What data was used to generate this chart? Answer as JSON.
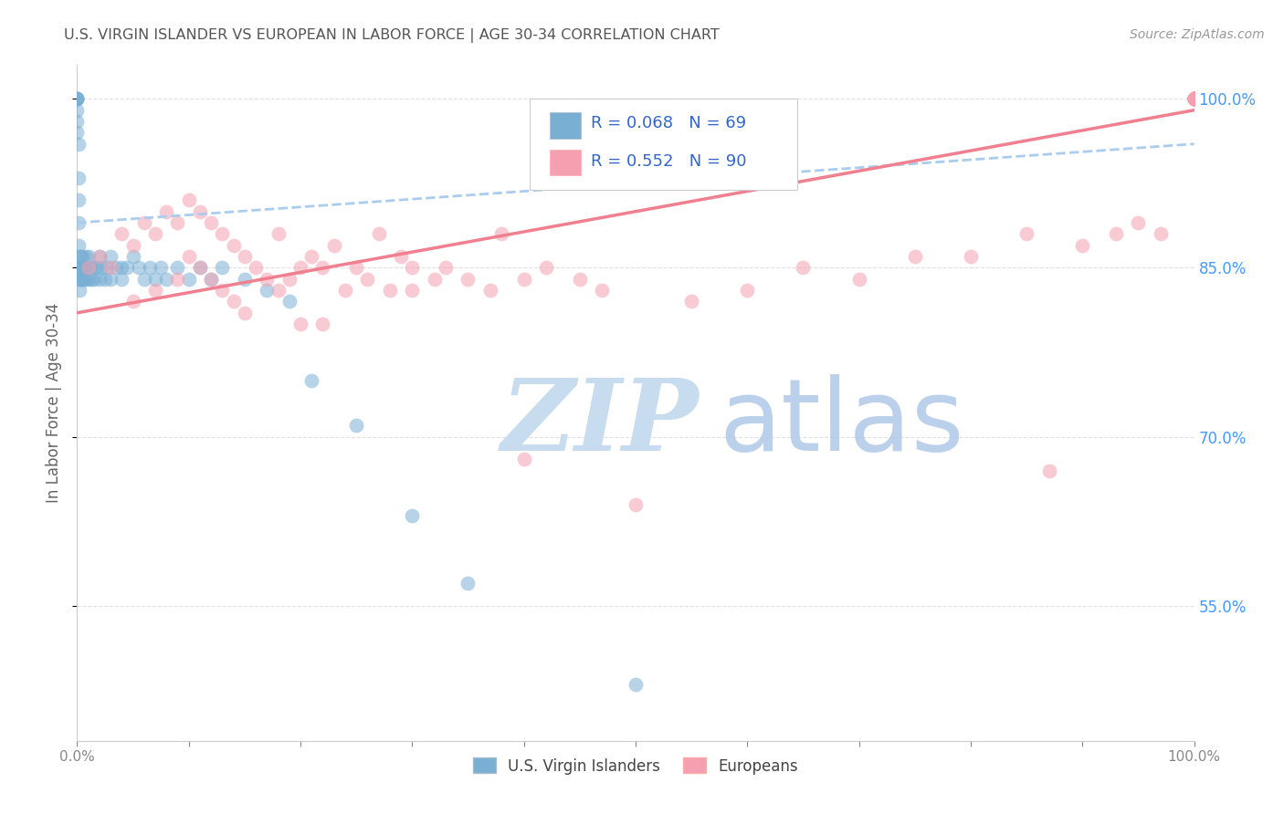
{
  "title": "U.S. VIRGIN ISLANDER VS EUROPEAN IN LABOR FORCE | AGE 30-34 CORRELATION CHART",
  "source": "Source: ZipAtlas.com",
  "ylabel": "In Labor Force | Age 30-34",
  "legend_label_1": "U.S. Virgin Islanders",
  "legend_label_2": "Europeans",
  "R1": 0.068,
  "N1": 69,
  "R2": 0.552,
  "N2": 90,
  "color_blue": "#7AAFD4",
  "color_pink": "#F4A0B0",
  "color_trend_blue": "#AACCEE",
  "color_trend_pink": "#F08090",
  "watermark_zip_color": "#C8DCEF",
  "watermark_atlas_color": "#B0C8E8",
  "title_color": "#555555",
  "tick_color_right": "#4499FF",
  "grid_color": "#E0E0E0",
  "xlim": [
    0.0,
    1.0
  ],
  "ylim": [
    0.43,
    1.03
  ],
  "blue_x": [
    0.0,
    0.0,
    0.0,
    0.0,
    0.0,
    0.0,
    0.0,
    0.0,
    0.001,
    0.001,
    0.001,
    0.001,
    0.001,
    0.002,
    0.002,
    0.002,
    0.002,
    0.003,
    0.003,
    0.003,
    0.004,
    0.004,
    0.005,
    0.005,
    0.005,
    0.006,
    0.006,
    0.007,
    0.008,
    0.008,
    0.009,
    0.01,
    0.01,
    0.012,
    0.013,
    0.015,
    0.015,
    0.018,
    0.02,
    0.02,
    0.022,
    0.025,
    0.027,
    0.03,
    0.03,
    0.035,
    0.04,
    0.04,
    0.045,
    0.05,
    0.055,
    0.06,
    0.065,
    0.07,
    0.075,
    0.08,
    0.09,
    0.1,
    0.11,
    0.12,
    0.13,
    0.15,
    0.17,
    0.19,
    0.21,
    0.25,
    0.3,
    0.35,
    0.5
  ],
  "blue_y": [
    1.0,
    1.0,
    1.0,
    1.0,
    1.0,
    0.99,
    0.98,
    0.97,
    0.96,
    0.93,
    0.91,
    0.89,
    0.87,
    0.86,
    0.85,
    0.84,
    0.83,
    0.86,
    0.85,
    0.84,
    0.85,
    0.84,
    0.86,
    0.85,
    0.84,
    0.85,
    0.84,
    0.85,
    0.86,
    0.84,
    0.85,
    0.86,
    0.84,
    0.85,
    0.84,
    0.85,
    0.84,
    0.85,
    0.86,
    0.84,
    0.85,
    0.84,
    0.85,
    0.86,
    0.84,
    0.85,
    0.85,
    0.84,
    0.85,
    0.86,
    0.85,
    0.84,
    0.85,
    0.84,
    0.85,
    0.84,
    0.85,
    0.84,
    0.85,
    0.84,
    0.85,
    0.84,
    0.83,
    0.82,
    0.75,
    0.71,
    0.63,
    0.57,
    0.48
  ],
  "pink_x": [
    0.01,
    0.02,
    0.03,
    0.04,
    0.05,
    0.05,
    0.06,
    0.07,
    0.07,
    0.08,
    0.09,
    0.09,
    0.1,
    0.1,
    0.11,
    0.11,
    0.12,
    0.12,
    0.13,
    0.13,
    0.14,
    0.14,
    0.15,
    0.15,
    0.16,
    0.17,
    0.18,
    0.18,
    0.19,
    0.2,
    0.2,
    0.21,
    0.22,
    0.22,
    0.23,
    0.24,
    0.25,
    0.26,
    0.27,
    0.28,
    0.29,
    0.3,
    0.3,
    0.32,
    0.33,
    0.35,
    0.37,
    0.38,
    0.4,
    0.4,
    0.42,
    0.45,
    0.47,
    0.5,
    0.55,
    0.6,
    0.65,
    0.7,
    0.75,
    0.8,
    0.85,
    0.87,
    0.9,
    0.93,
    0.95,
    0.97,
    1.0,
    1.0,
    1.0,
    1.0,
    1.0,
    1.0,
    1.0,
    1.0,
    1.0,
    1.0,
    1.0,
    1.0,
    1.0,
    1.0,
    1.0,
    1.0,
    1.0,
    1.0,
    1.0,
    1.0,
    1.0,
    1.0,
    1.0,
    1.0
  ],
  "pink_y": [
    0.85,
    0.86,
    0.85,
    0.88,
    0.87,
    0.82,
    0.89,
    0.88,
    0.83,
    0.9,
    0.89,
    0.84,
    0.91,
    0.86,
    0.9,
    0.85,
    0.89,
    0.84,
    0.88,
    0.83,
    0.87,
    0.82,
    0.86,
    0.81,
    0.85,
    0.84,
    0.83,
    0.88,
    0.84,
    0.85,
    0.8,
    0.86,
    0.85,
    0.8,
    0.87,
    0.83,
    0.85,
    0.84,
    0.88,
    0.83,
    0.86,
    0.85,
    0.83,
    0.84,
    0.85,
    0.84,
    0.83,
    0.88,
    0.84,
    0.68,
    0.85,
    0.84,
    0.83,
    0.64,
    0.82,
    0.83,
    0.85,
    0.84,
    0.86,
    0.86,
    0.88,
    0.67,
    0.87,
    0.88,
    0.89,
    0.88,
    1.0,
    1.0,
    1.0,
    1.0,
    1.0,
    1.0,
    1.0,
    1.0,
    1.0,
    1.0,
    1.0,
    1.0,
    1.0,
    1.0,
    1.0,
    1.0,
    1.0,
    1.0,
    1.0,
    1.0,
    1.0,
    1.0,
    1.0,
    1.0
  ],
  "blue_trend_x": [
    0.0,
    1.0
  ],
  "blue_trend_y": [
    0.89,
    0.96
  ],
  "pink_trend_x": [
    0.0,
    1.0
  ],
  "pink_trend_y": [
    0.81,
    0.99
  ]
}
